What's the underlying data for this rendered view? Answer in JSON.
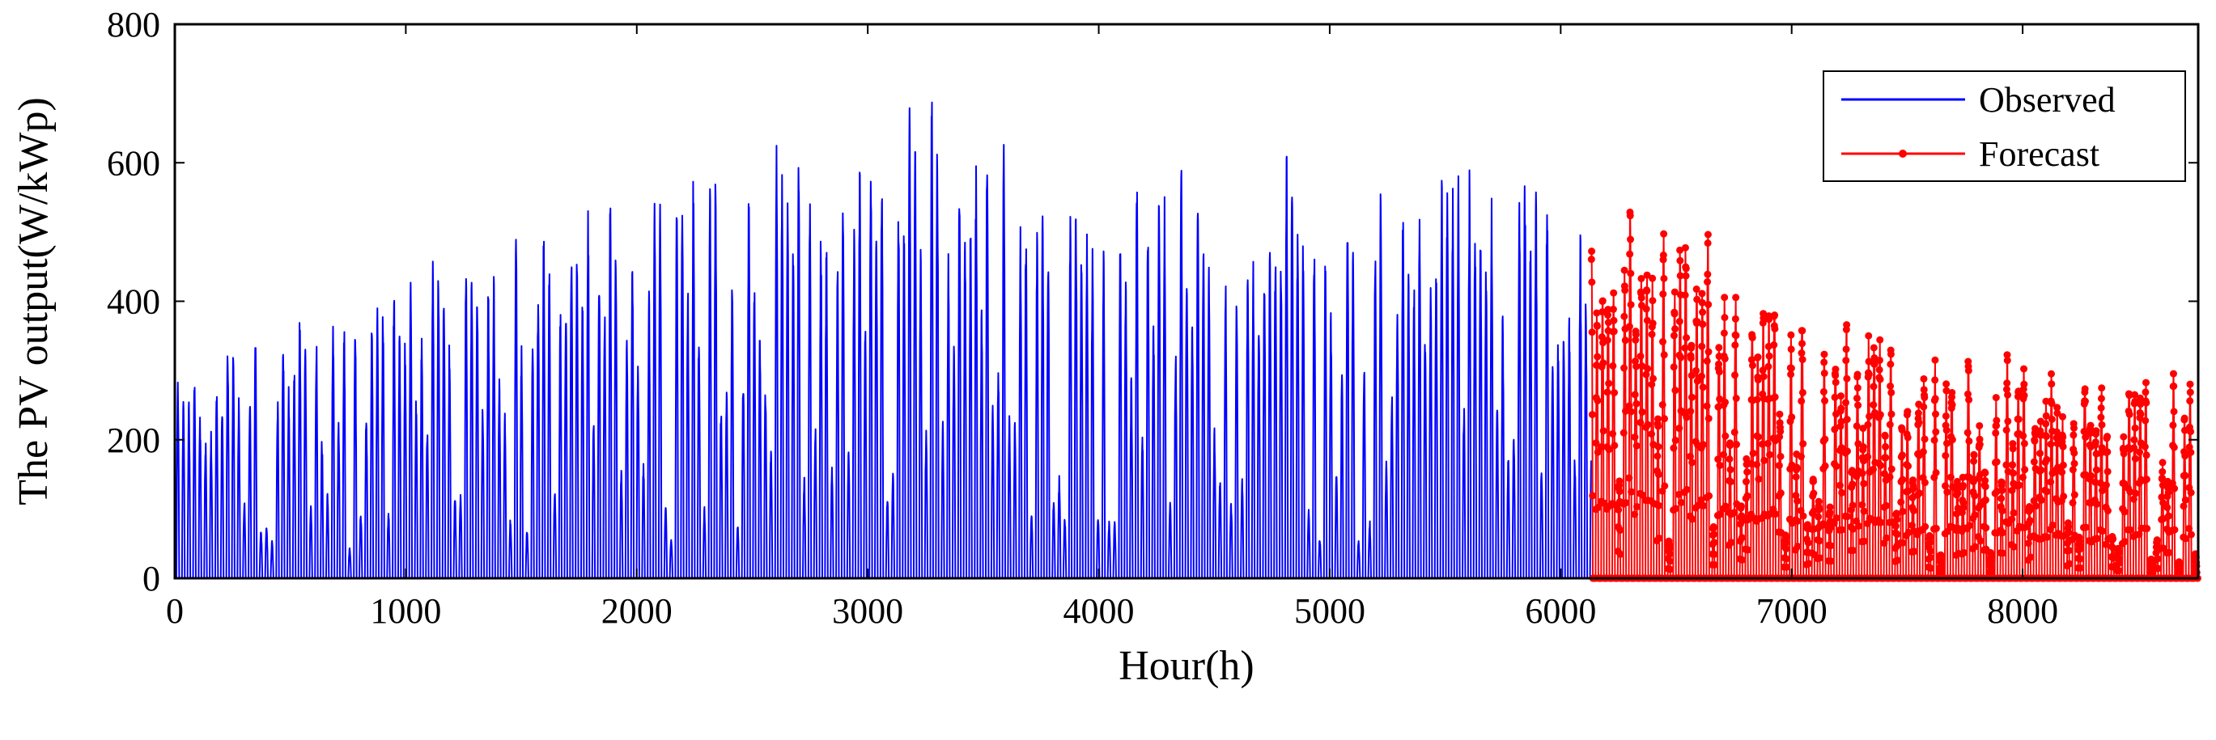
{
  "chart_data": {
    "type": "line",
    "title": "",
    "xlabel": "Hour(h)",
    "ylabel": "The PV output(W/kWp)",
    "xlim": [
      0,
      8760
    ],
    "ylim": [
      0,
      800
    ],
    "x_ticks": [
      0,
      1000,
      2000,
      3000,
      4000,
      5000,
      6000,
      7000,
      8000
    ],
    "y_ticks": [
      0,
      200,
      400,
      600,
      800
    ],
    "legend_position": "top-right",
    "grid": false,
    "x_resolution_hours": 1,
    "series": [
      {
        "name": "Observed",
        "color": "#0000FF",
        "marker": "none",
        "x_range": [
          1,
          6132
        ],
        "daily_peak_envelope": [
          {
            "x": 0,
            "y": 300
          },
          {
            "x": 200,
            "y": 340
          },
          {
            "x": 500,
            "y": 390
          },
          {
            "x": 800,
            "y": 400
          },
          {
            "x": 1000,
            "y": 450
          },
          {
            "x": 1200,
            "y": 490
          },
          {
            "x": 1500,
            "y": 530
          },
          {
            "x": 2000,
            "y": 580
          },
          {
            "x": 2400,
            "y": 620
          },
          {
            "x": 3000,
            "y": 640
          },
          {
            "x": 3340,
            "y": 730
          },
          {
            "x": 3500,
            "y": 660
          },
          {
            "x": 4000,
            "y": 610
          },
          {
            "x": 4500,
            "y": 600
          },
          {
            "x": 4850,
            "y": 645
          },
          {
            "x": 5150,
            "y": 640
          },
          {
            "x": 5500,
            "y": 600
          },
          {
            "x": 6000,
            "y": 620
          },
          {
            "x": 6132,
            "y": 570
          }
        ]
      },
      {
        "name": "Forecast",
        "color": "#FF0000",
        "marker": "dot",
        "x_range": [
          6133,
          8760
        ],
        "daily_peak_envelope": [
          {
            "x": 6133,
            "y": 540
          },
          {
            "x": 6200,
            "y": 585
          },
          {
            "x": 6350,
            "y": 555
          },
          {
            "x": 6700,
            "y": 510
          },
          {
            "x": 7000,
            "y": 420
          },
          {
            "x": 7300,
            "y": 370
          },
          {
            "x": 7600,
            "y": 330
          },
          {
            "x": 7900,
            "y": 330
          },
          {
            "x": 8300,
            "y": 300
          },
          {
            "x": 8700,
            "y": 300
          },
          {
            "x": 8760,
            "y": 280
          }
        ]
      }
    ]
  }
}
